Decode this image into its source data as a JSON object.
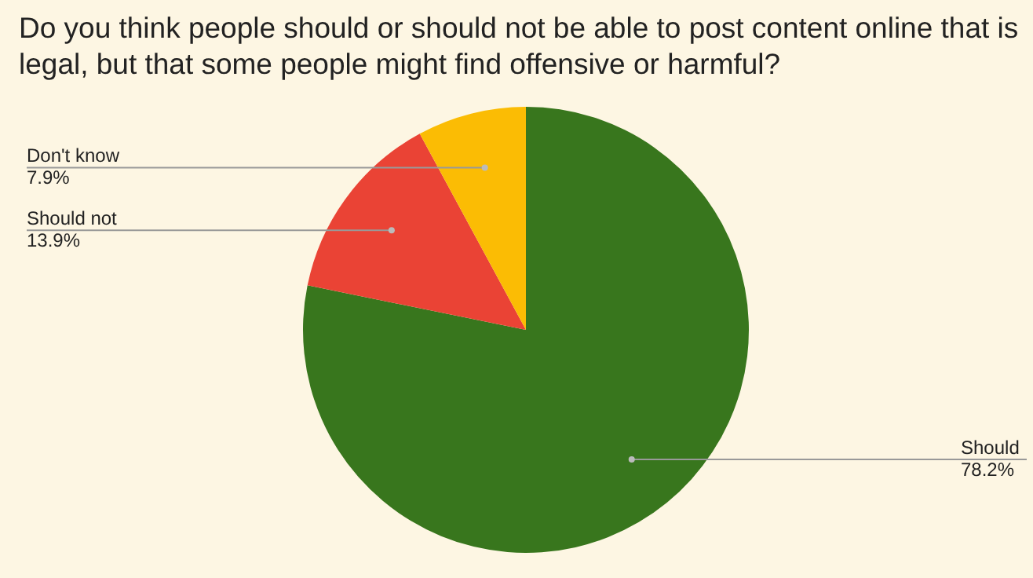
{
  "chart_data": {
    "type": "pie",
    "title": "Do you think people should or should not be able to post content online that is legal, but that some people might find offensive or harmful?",
    "categories": [
      "Should",
      "Should not",
      "Don't know"
    ],
    "values": [
      78.2,
      13.9,
      7.9
    ],
    "colors": [
      "#38761d",
      "#ea4335",
      "#fbbc04"
    ],
    "value_labels": [
      "78.2%",
      "13.9%",
      "7.9%"
    ]
  }
}
